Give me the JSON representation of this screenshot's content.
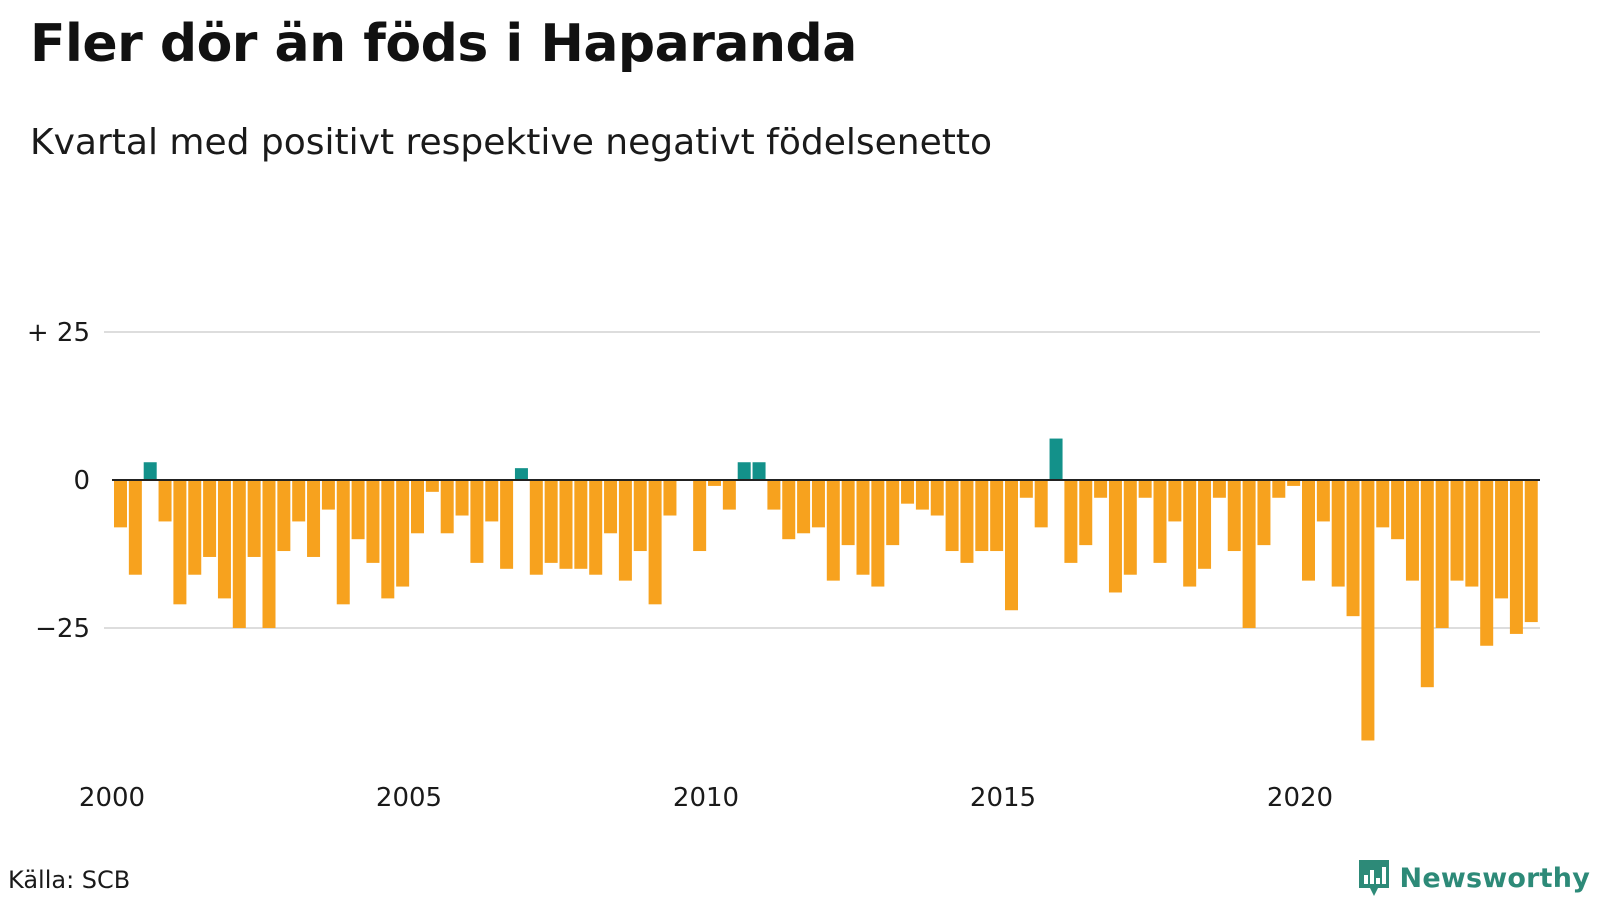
{
  "chart_data": {
    "type": "bar",
    "title": "Fler dör än föds i Haparanda",
    "subtitle": "Kvartal med positivt respektive negativt födelsenetto",
    "xlabel": "",
    "ylabel": "",
    "x_ticks": [
      {
        "year": 2000,
        "label": "2000"
      },
      {
        "year": 2005,
        "label": "2005"
      },
      {
        "year": 2010,
        "label": "2010"
      },
      {
        "year": 2015,
        "label": "2015"
      },
      {
        "year": 2020,
        "label": "2020"
      }
    ],
    "y_ticks": [
      {
        "value": 25,
        "label": "+ 25"
      },
      {
        "value": 0,
        "label": "0"
      },
      {
        "value": -25,
        "label": "−25"
      }
    ],
    "ylim": [
      -48,
      25
    ],
    "grid": true,
    "legend": "none",
    "colors": {
      "positive": "#13918a",
      "negative": "#f7a21e",
      "grid": "#dddddd",
      "zero_line": "#222222"
    },
    "start": "2000 Q1",
    "values": [
      -8,
      -16,
      3,
      -7,
      -21,
      -16,
      -13,
      -20,
      -25,
      -13,
      -25,
      -12,
      -7,
      -13,
      -5,
      -21,
      -10,
      -14,
      -20,
      -18,
      -9,
      -2,
      -9,
      -6,
      -14,
      -7,
      -15,
      2,
      -16,
      -14,
      -15,
      -15,
      -16,
      -9,
      -17,
      -12,
      -21,
      -6,
      0,
      -12,
      -1,
      -5,
      3,
      3,
      -5,
      -10,
      -9,
      -8,
      -17,
      -11,
      -16,
      -18,
      -11,
      -4,
      -5,
      -6,
      -12,
      -14,
      -12,
      -12,
      -22,
      -3,
      -8,
      7,
      -14,
      -11,
      -3,
      -19,
      -16,
      -3,
      -14,
      -7,
      -18,
      -15,
      -3,
      -12,
      -25,
      -11,
      -3,
      -1,
      -17,
      -7,
      -18,
      -23,
      -44,
      -8,
      -10,
      -17,
      -35,
      -25,
      -17,
      -18,
      -28,
      -20,
      -26,
      -24
    ]
  },
  "footer": {
    "source": "Källa: SCB",
    "brand": "Newsworthy"
  }
}
